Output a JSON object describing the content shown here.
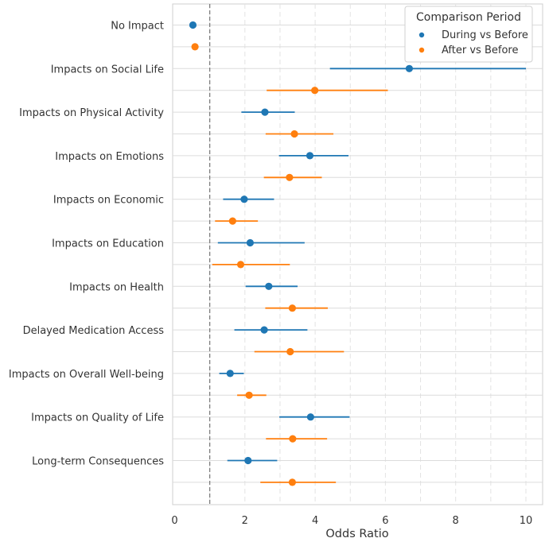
{
  "chart_data": {
    "type": "scatter",
    "subtype": "forest-plot",
    "title": "",
    "xlabel": "Odds Ratio",
    "ylabel": "",
    "xlim": [
      0,
      10.5
    ],
    "xticks": [
      0,
      2,
      4,
      6,
      8,
      10
    ],
    "reference_line": 1,
    "grid": true,
    "legend": {
      "title": "Comparison Period",
      "position": "top-right",
      "entries": [
        "During vs Before",
        "After vs Before"
      ]
    },
    "categories": [
      "No Impact",
      "Impacts on Social Life",
      "Impacts on Physical Activity",
      "Impacts on Emotions",
      "Impacts on Economic",
      "Impacts on Education",
      "Impacts on Health",
      "Delayed Medication Access",
      "Impacts on Overall Well-being",
      "Impacts on Quality of Life",
      "Long-term Consequences"
    ],
    "series": [
      {
        "name": "During vs Before",
        "color": "#1f77b4",
        "values": [
          0.52,
          6.68,
          2.57,
          3.85,
          1.98,
          2.15,
          2.68,
          2.55,
          1.58,
          3.87,
          2.09
        ],
        "lower": [
          null,
          4.42,
          1.9,
          2.97,
          1.38,
          1.23,
          2.02,
          1.7,
          1.27,
          2.98,
          1.5
        ],
        "upper": [
          null,
          10.0,
          3.42,
          4.95,
          2.83,
          3.7,
          3.5,
          3.78,
          1.97,
          4.98,
          2.92
        ]
      },
      {
        "name": "After vs Before",
        "color": "#ff7f0e",
        "values": [
          0.58,
          3.99,
          3.41,
          3.27,
          1.65,
          1.88,
          3.35,
          3.29,
          2.12,
          3.36,
          3.35
        ],
        "lower": [
          null,
          2.62,
          2.59,
          2.54,
          1.15,
          1.07,
          2.58,
          2.27,
          1.78,
          2.6,
          2.44
        ],
        "upper": [
          null,
          6.07,
          4.52,
          4.19,
          2.37,
          3.28,
          4.36,
          4.82,
          2.61,
          4.34,
          4.59
        ]
      }
    ]
  }
}
